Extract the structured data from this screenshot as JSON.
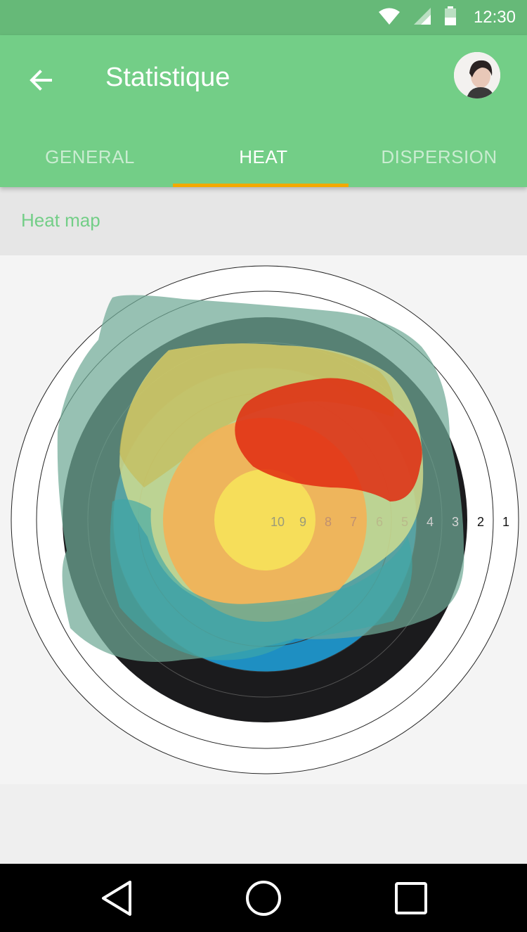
{
  "status_bar": {
    "time": "12:30",
    "icons": [
      "wifi-icon",
      "signal-icon",
      "battery-icon"
    ]
  },
  "app_bar": {
    "title": "Statistique",
    "back_icon": "arrow-left-icon",
    "avatar": "user-avatar"
  },
  "tabs": [
    {
      "label": "GENERAL",
      "selected": false
    },
    {
      "label": "HEAT",
      "selected": true
    },
    {
      "label": "DISPERSION",
      "selected": false
    }
  ],
  "section": {
    "title": "Heat map"
  },
  "target": {
    "ring_labels": [
      "10",
      "9",
      "8",
      "7",
      "6",
      "5",
      "4",
      "3",
      "2",
      "1"
    ]
  },
  "nav_bar": {
    "icons": [
      "back-triangle-icon",
      "home-circle-icon",
      "recents-square-icon"
    ]
  },
  "colors": {
    "status_bar": "#66b978",
    "app_bar": "#73ce87",
    "tab_indicator": "#f2a900",
    "accent_text": "#73ce87"
  }
}
